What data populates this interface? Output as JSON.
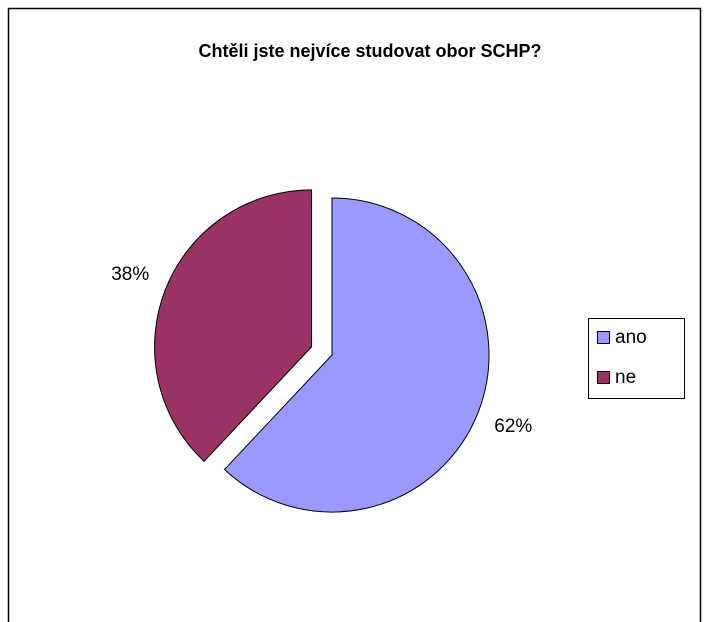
{
  "chart_data": {
    "type": "pie",
    "title": "Chtěli jste nejvíce studovat obor SCHP?",
    "categories": [
      "ano",
      "ne"
    ],
    "values": [
      62,
      38
    ],
    "value_labels": [
      "62%",
      "38%"
    ],
    "colors": [
      "#9999ff",
      "#993366"
    ],
    "legend": "right",
    "exploded": [
      false,
      true
    ]
  }
}
